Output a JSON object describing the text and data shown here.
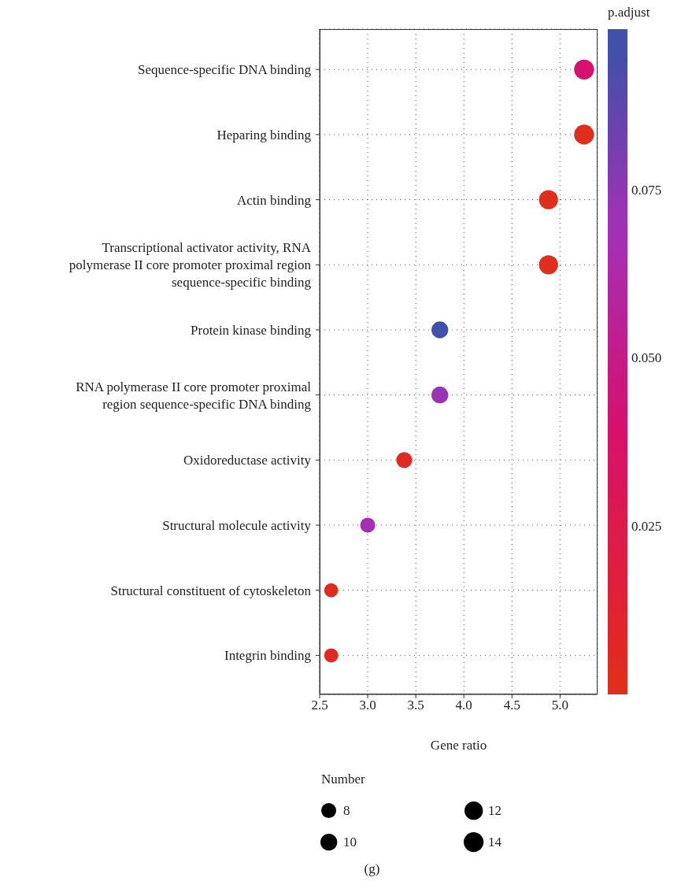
{
  "chart_data": {
    "type": "bubble",
    "orientation": "horizontal",
    "categories": [
      "Sequence-specific DNA binding",
      "Heparing binding",
      "Actin binding",
      "Transcriptional activator activity, RNA polymerase II core promoter proximal region sequence-specific binding",
      "Protein kinase binding",
      "RNA polymerase II core promoter proximal region sequence-specific DNA binding",
      "Oxidoreductase activity",
      "Structural molecule activity",
      "Structural constituent of cytoskeleton",
      "Integrin binding"
    ],
    "values": [
      5.25,
      5.25,
      4.88,
      4.88,
      3.75,
      3.75,
      3.38,
      3.0,
      2.62,
      2.62
    ],
    "sizes": [
      14,
      14,
      13,
      13,
      10,
      10,
      9,
      8,
      7,
      7
    ],
    "cvalues": [
      0.04,
      0.003,
      0.003,
      0.003,
      0.095,
      0.072,
      0.005,
      0.068,
      0.005,
      0.005
    ],
    "colors": [
      "#d6106e",
      "#df2e1c",
      "#df2e1c",
      "#df2e1c",
      "#4150a8",
      "#9a33b4",
      "#df2a22",
      "#a42fb5",
      "#e02a20",
      "#e02a20"
    ],
    "xlim": [
      2.5,
      5.39
    ],
    "xticks": [
      2.5,
      {
        "value": 3,
        "label": "3.0"
      },
      3.5,
      {
        "value": 4,
        "label": "4.0"
      },
      4.5,
      {
        "value": 5,
        "label": "5.0"
      }
    ],
    "clim": [
      0,
      0.099
    ],
    "cticks": [
      0.025,
      {
        "value": 0.05,
        "label": "0.050"
      },
      0.075
    ],
    "clabel": "p.adjust",
    "size_legend": [
      8,
      10,
      12,
      14
    ],
    "legend_title": "Number",
    "xlabel": "Gene ratio",
    "grid": true,
    "annotations": [
      "(g)"
    ]
  }
}
